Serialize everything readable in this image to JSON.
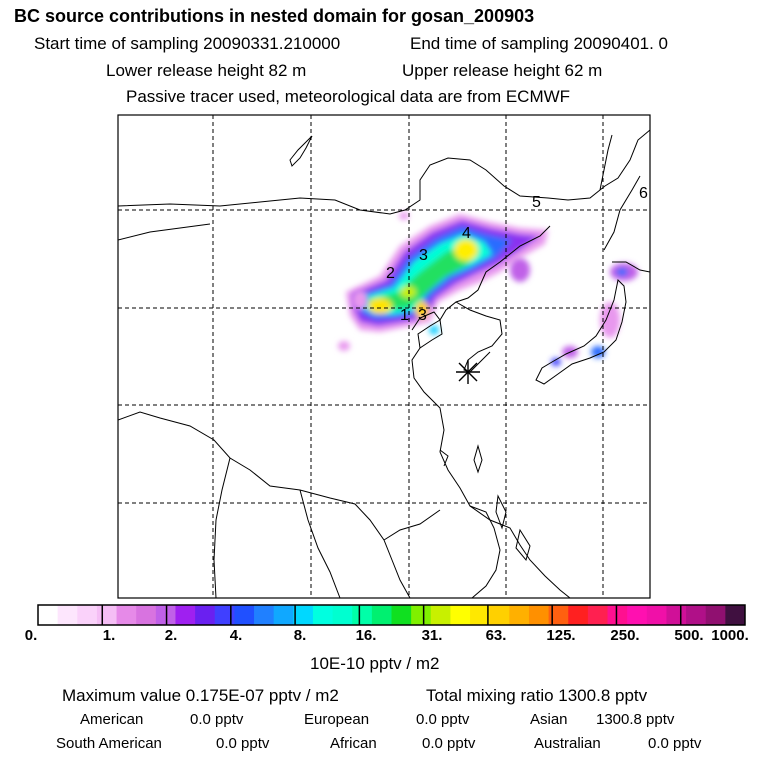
{
  "header": {
    "title": "BC  source contributions in nested domain for gosan_200903",
    "start_label": "Start time of sampling 20090331.210000",
    "end_label": "End time of sampling 20090401.     0",
    "lower_release": "Lower release height   82 m",
    "upper_release": "Upper release height   62 m",
    "tracer_note": "Passive tracer used, meteorological data are from ECMWF"
  },
  "map": {
    "region_labels": [
      {
        "id": "r1",
        "text": "1"
      },
      {
        "id": "r2",
        "text": "2"
      },
      {
        "id": "r3a",
        "text": "3"
      },
      {
        "id": "r3b",
        "text": "3"
      },
      {
        "id": "r4",
        "text": "4"
      },
      {
        "id": "r5",
        "text": "5"
      },
      {
        "id": "r6",
        "text": "6"
      }
    ],
    "receptor_marker": "asterisk-star-icon",
    "colors": {
      "frame": "#000000",
      "grid": "#000000",
      "coast": "#000000"
    }
  },
  "colorbar": {
    "colors": [
      "#ffffff",
      "#fde6fd",
      "#fad2fa",
      "#f5bef5",
      "#e68ae8",
      "#d873e0",
      "#c060e8",
      "#9f20f0",
      "#6a20f0",
      "#4040ff",
      "#2050ff",
      "#2080ff",
      "#10a8ff",
      "#00d8ff",
      "#00ffe0",
      "#00ffd0",
      "#00ffa8",
      "#00f070",
      "#10e020",
      "#80f000",
      "#c8f000",
      "#ffff00",
      "#ffe800",
      "#ffd000",
      "#ffb000",
      "#ff9000",
      "#ff6010",
      "#ff2020",
      "#ff2050",
      "#ff1090",
      "#ff10b0",
      "#f010a8",
      "#d01098",
      "#b01088",
      "#901070",
      "#401040"
    ],
    "labels": [
      "0.",
      "1.",
      "2.",
      "4.",
      "8.",
      "16.",
      "31.",
      "63.",
      "125.",
      "250.",
      "500.",
      "1000."
    ],
    "unit": "10E-10 pptv / m2"
  },
  "summary": {
    "max_value": "Maximum value  0.175E-07 pptv / m2",
    "total_mixing": "Total mixing ratio     1300.8 pptv",
    "american_label": "American",
    "american_value": "0.0 pptv",
    "european_label": "European",
    "european_value": "0.0 pptv",
    "asian_label": "Asian",
    "asian_value": "1300.8 pptv",
    "south_american_label": "South American",
    "south_american_value": "0.0 pptv",
    "african_label": "African",
    "african_value": "0.0 pptv",
    "australian_label": "Australian",
    "australian_value": "0.0 pptv"
  }
}
